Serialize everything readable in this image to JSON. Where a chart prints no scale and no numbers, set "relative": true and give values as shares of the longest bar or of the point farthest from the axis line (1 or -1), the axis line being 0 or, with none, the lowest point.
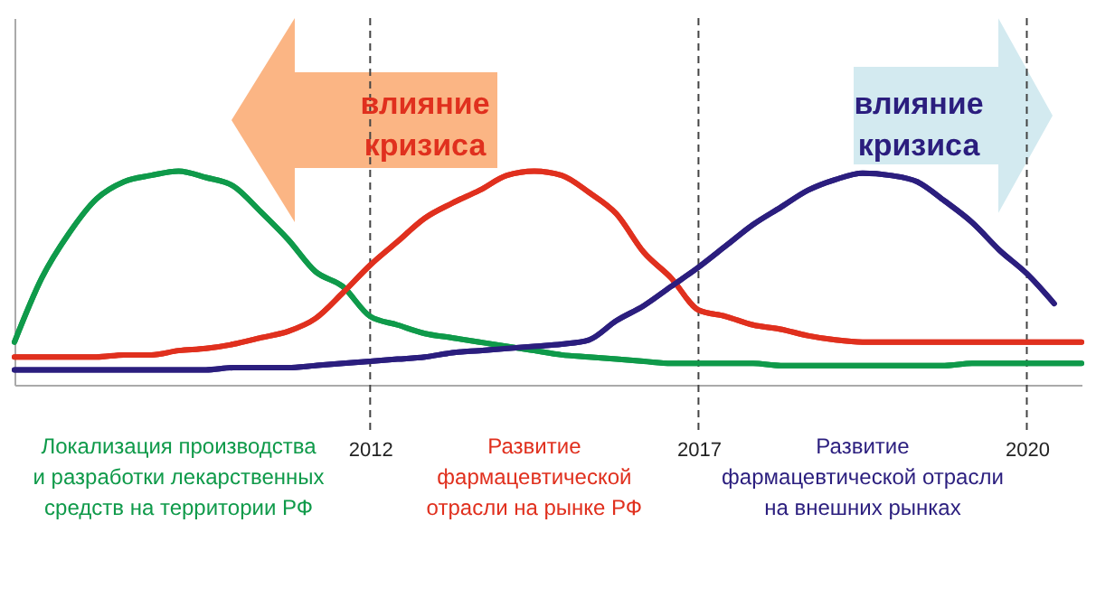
{
  "chart_data": {
    "type": "line",
    "relative": true,
    "categories": [
      null,
      null,
      null,
      null,
      null,
      null,
      null,
      null,
      null,
      null,
      null,
      null,
      null,
      "2012",
      null,
      null,
      null,
      null,
      null,
      null,
      null,
      null,
      null,
      null,
      null,
      "2017",
      null,
      null,
      null,
      null,
      null,
      null,
      null,
      null,
      null,
      null,
      null,
      "2020",
      null,
      null
    ],
    "ref_lines": [
      {
        "axis": "x",
        "value": "2012",
        "line_style": "dashed"
      },
      {
        "axis": "x",
        "value": "2017",
        "line_style": "dashed"
      },
      {
        "axis": "x",
        "value": "2020",
        "line_style": "dashed"
      }
    ],
    "line_style": "solid",
    "marker": "none",
    "annotations": [
      "влияние кризиса",
      "влияние кризиса"
    ],
    "series": [
      {
        "name": "Локализация производства\nи разработки лекарственных\nсредств на территории РФ",
        "color": "#0f9a4a",
        "values": [
          0.2,
          0.5,
          0.71,
          0.87,
          0.95,
          0.98,
          1.0,
          0.97,
          0.93,
          0.81,
          0.68,
          0.53,
          0.46,
          0.32,
          0.28,
          0.24,
          0.22,
          0.2,
          0.18,
          0.16,
          0.14,
          0.13,
          0.12,
          0.11,
          0.1,
          0.1,
          0.1,
          0.1,
          0.09,
          0.09,
          0.09,
          0.09,
          0.09,
          0.09,
          0.09,
          0.1,
          0.1,
          0.1,
          0.1,
          0.1
        ]
      },
      {
        "name": "Развитие\nфармацевтической\nотрасли на рынке РФ",
        "color": "#e0301e",
        "values": [
          0.13,
          0.13,
          0.13,
          0.13,
          0.14,
          0.14,
          0.16,
          0.17,
          0.19,
          0.22,
          0.25,
          0.31,
          0.43,
          0.56,
          0.67,
          0.78,
          0.85,
          0.91,
          0.98,
          1.0,
          0.98,
          0.9,
          0.8,
          0.62,
          0.5,
          0.35,
          0.32,
          0.28,
          0.26,
          0.23,
          0.21,
          0.2,
          0.2,
          0.2,
          0.2,
          0.2,
          0.2,
          0.2,
          0.2,
          0.2
        ]
      },
      {
        "name": "Развитие\nфармацевтической отрасли\nна внешних рынках",
        "color": "#2b1e7e",
        "values": [
          0.07,
          0.07,
          0.07,
          0.07,
          0.07,
          0.07,
          0.07,
          0.07,
          0.08,
          0.08,
          0.08,
          0.09,
          0.1,
          0.11,
          0.12,
          0.13,
          0.15,
          0.16,
          0.17,
          0.18,
          0.19,
          0.21,
          0.3,
          0.37,
          0.46,
          0.55,
          0.65,
          0.75,
          0.83,
          0.91,
          0.96,
          0.99,
          0.98,
          0.95,
          0.86,
          0.76,
          0.63,
          0.52,
          0.38,
          null
        ]
      }
    ]
  }
}
